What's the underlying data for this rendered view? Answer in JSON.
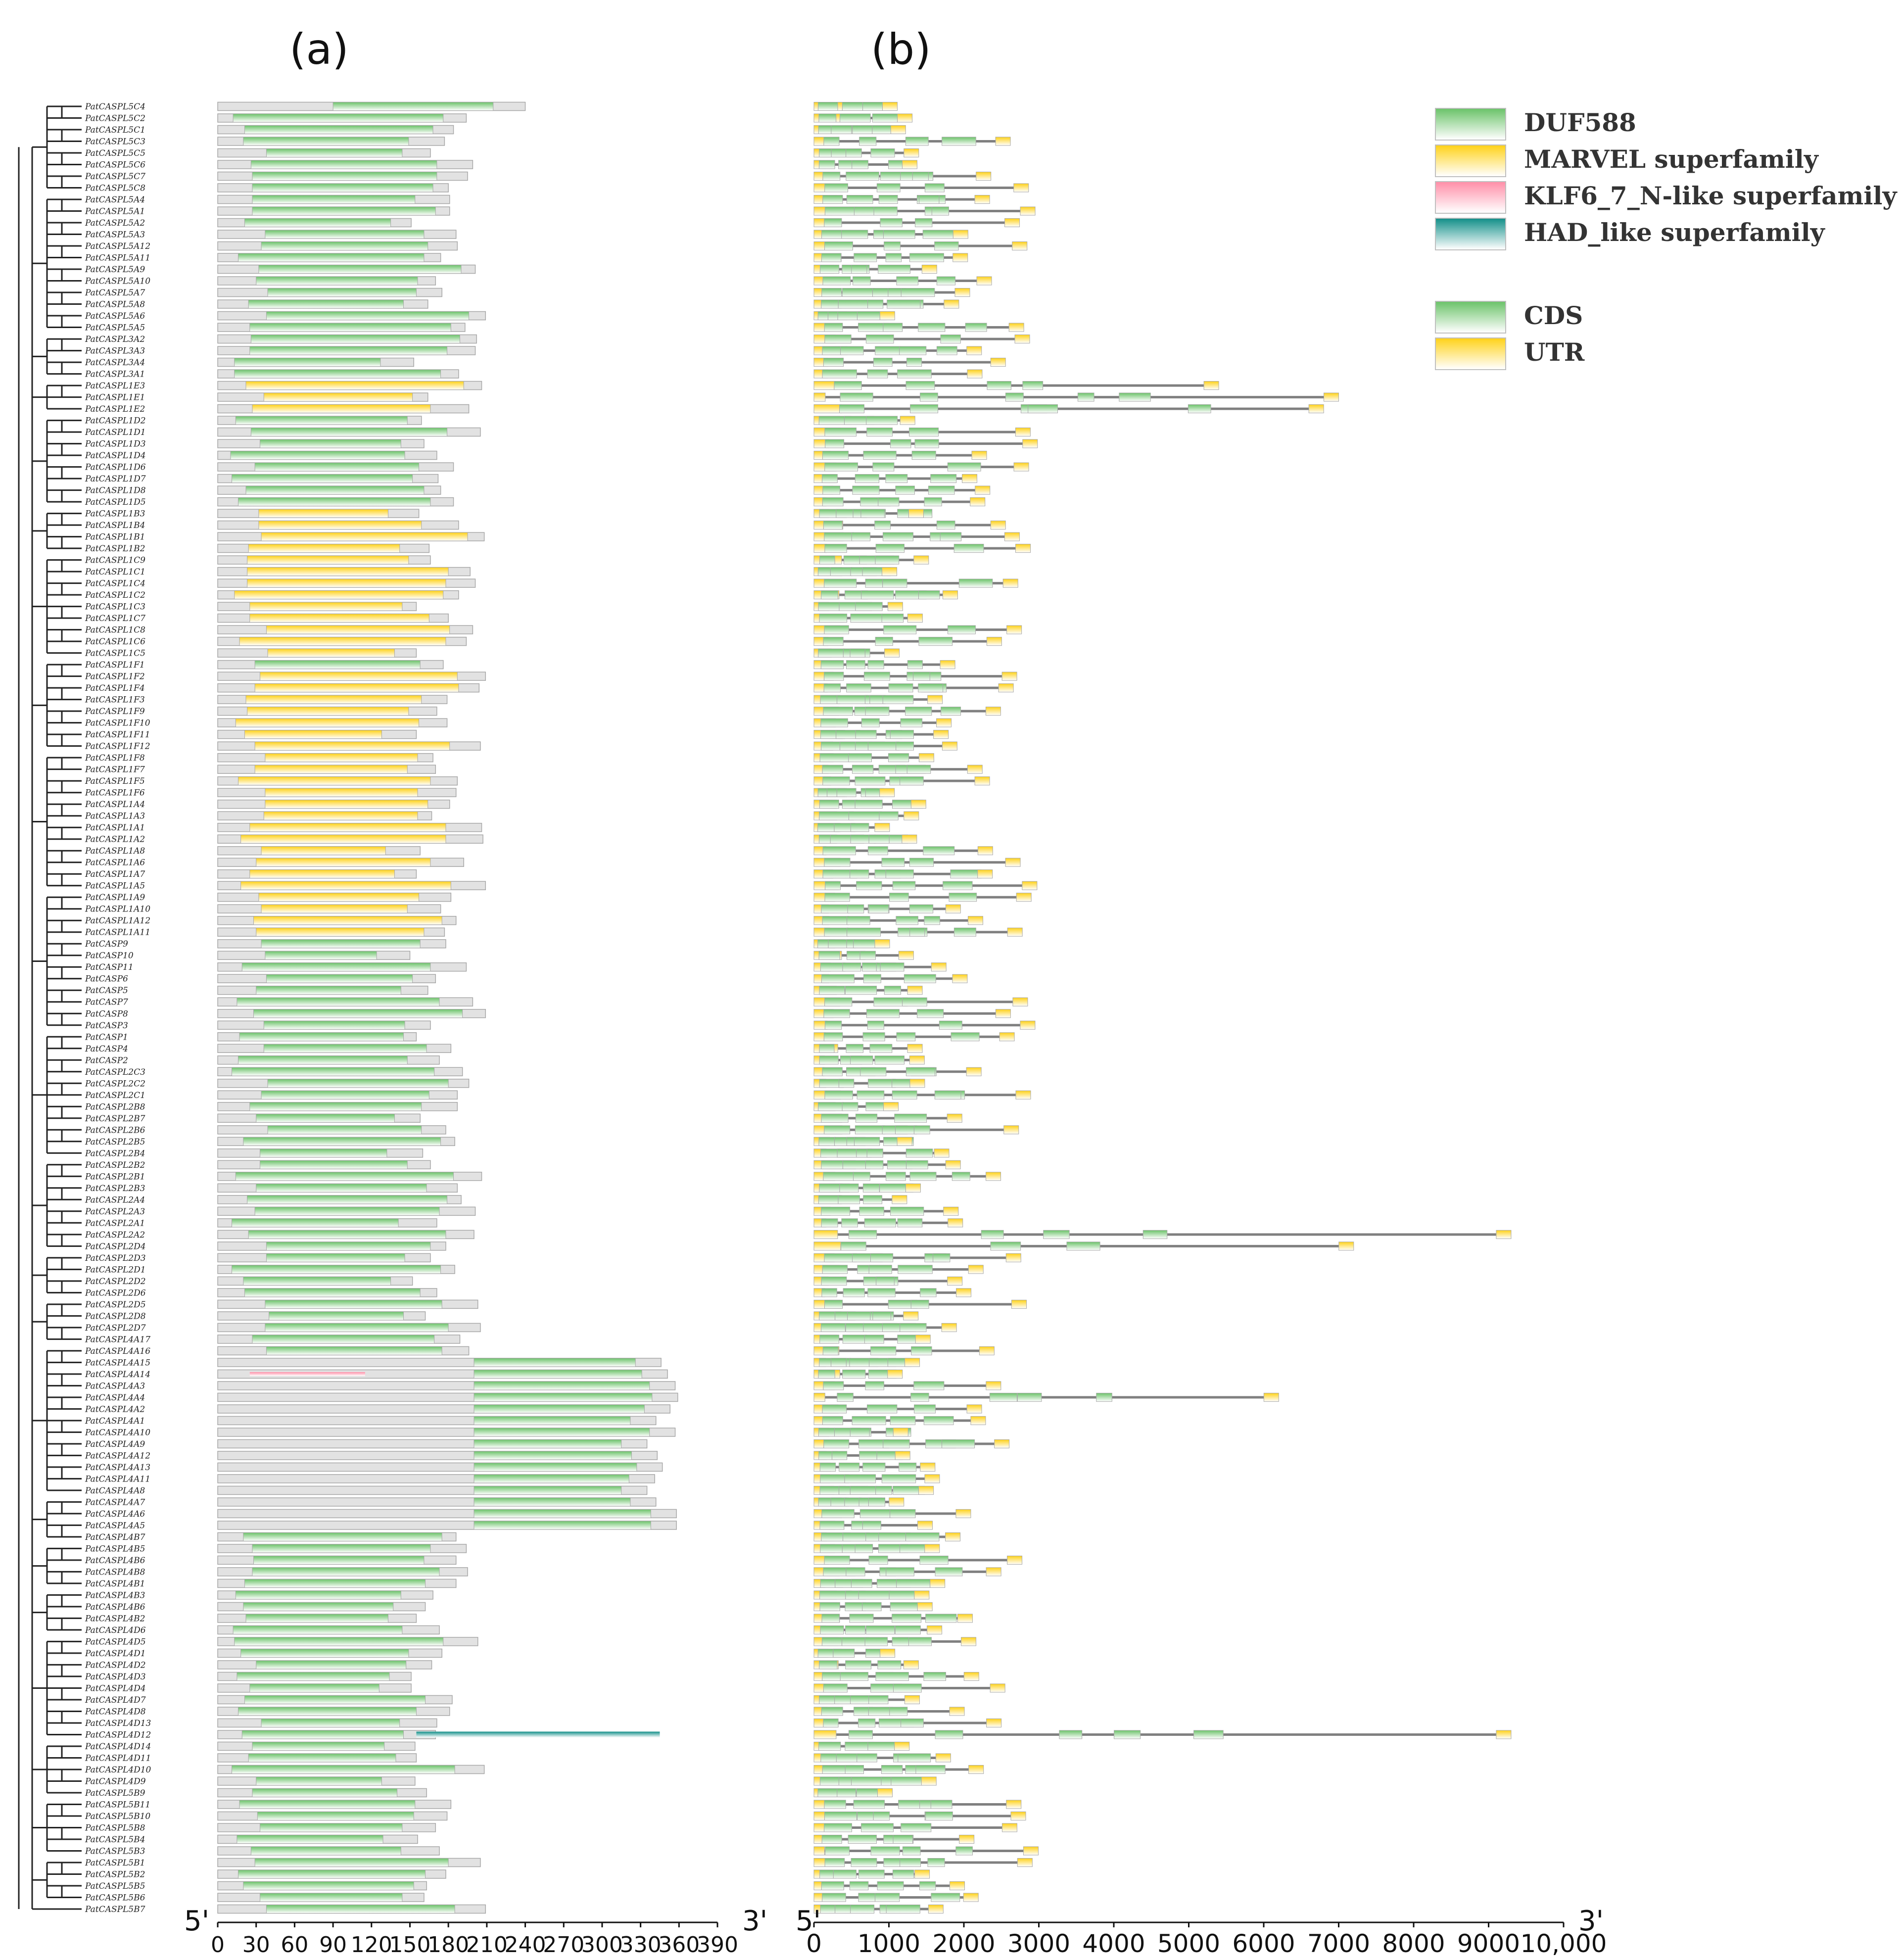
{
  "panels": {
    "a": "(a)",
    "b": "(b)"
  },
  "axis_a": {
    "start_label": "5'",
    "end_label": "3'",
    "ticks": [
      0,
      30,
      60,
      90,
      120,
      150,
      180,
      210,
      240,
      270,
      300,
      330,
      360,
      390
    ]
  },
  "axis_b": {
    "start_label": "5'",
    "end_label": "3'",
    "ticks": [
      "0",
      "1000",
      "2000",
      "3000",
      "4000",
      "5000",
      "6000",
      "7000",
      "8000",
      "9000",
      "10,000"
    ]
  },
  "legend_domains": [
    {
      "label": "DUF588",
      "color": "#6cc36a"
    },
    {
      "label": "MARVEL superfamily",
      "color": "#ffd21a"
    },
    {
      "label": "KLF6_7_N-like superfamily",
      "color": "#ff8fa8"
    },
    {
      "label": "HAD_like superfamily",
      "color": "#14908a"
    }
  ],
  "legend_structure": [
    {
      "label": "CDS",
      "color": "#6cc36a"
    },
    {
      "label": "UTR",
      "color": "#ffd21a"
    }
  ],
  "colors": {
    "protein": "#dcdcdc",
    "intron": "#808080",
    "tree": "#222222"
  },
  "genes": [
    "PatCASPL5C4",
    "PatCASPL5C2",
    "PatCASPL5C1",
    "PatCASPL5C3",
    "PatCASPL5C5",
    "PatCASPL5C6",
    "PatCASPL5C7",
    "PatCASPL5C8",
    "PatCASPL5A4",
    "PatCASPL5A1",
    "PatCASPL5A2",
    "PatCASPL5A3",
    "PatCASPL5A12",
    "PatCASPL5A11",
    "PatCASPL5A9",
    "PatCASPL5A10",
    "PatCASPL5A7",
    "PatCASPL5A8",
    "PatCASPL5A6",
    "PatCASPL5A5",
    "PatCASPL3A2",
    "PatCASPL3A3",
    "PatCASPL3A4",
    "PatCASPL3A1",
    "PatCASPL1E3",
    "PatCASPL1E1",
    "PatCASPL1E2",
    "PatCASPL1D2",
    "PatCASPL1D1",
    "PatCASPL1D3",
    "PatCASPL1D4",
    "PatCASPL1D6",
    "PatCASPL1D7",
    "PatCASPL1D8",
    "PatCASPL1D5",
    "PatCASPL1B3",
    "PatCASPL1B4",
    "PatCASPL1B1",
    "PatCASPL1B2",
    "PatCASPL1C9",
    "PatCASPL1C1",
    "PatCASPL1C4",
    "PatCASPL1C2",
    "PatCASPL1C3",
    "PatCASPL1C7",
    "PatCASPL1C8",
    "PatCASPL1C6",
    "PatCASPL1C5",
    "PatCASPL1F1",
    "PatCASPL1F2",
    "PatCASPL1F4",
    "PatCASPL1F3",
    "PatCASPL1F9",
    "PatCASPL1F10",
    "PatCASPL1F11",
    "PatCASPL1F12",
    "PatCASPL1F8",
    "PatCASPL1F7",
    "PatCASPL1F5",
    "PatCASPL1F6",
    "PatCASPL1A4",
    "PatCASPL1A3",
    "PatCASPL1A1",
    "PatCASPL1A2",
    "PatCASPL1A8",
    "PatCASPL1A6",
    "PatCASPL1A7",
    "PatCASPL1A5",
    "PatCASPL1A9",
    "PatCASPL1A10",
    "PatCASPL1A12",
    "PatCASPL1A11",
    "PatCASP9",
    "PatCASP10",
    "PatCASP11",
    "PatCASP6",
    "PatCASP5",
    "PatCASP7",
    "PatCASP8",
    "PatCASP3",
    "PatCASP1",
    "PatCASP4",
    "PatCASP2",
    "PatCASPL2C3",
    "PatCASPL2C2",
    "PatCASPL2C1",
    "PatCASPL2B8",
    "PatCASPL2B7",
    "PatCASPL2B6",
    "PatCASPL2B5",
    "PatCASPL2B4",
    "PatCASPL2B2",
    "PatCASPL2B1",
    "PatCASPL2B3",
    "PatCASPL2A4",
    "PatCASPL2A3",
    "PatCASPL2A1",
    "PatCASPL2A2",
    "PatCASPL2D4",
    "PatCASPL2D3",
    "PatCASPL2D1",
    "PatCASPL2D2",
    "PatCASPL2D6",
    "PatCASPL2D5",
    "PatCASPL2D8",
    "PatCASPL2D7",
    "PatCASPL4A17",
    "PatCASPL4A16",
    "PatCASPL4A15",
    "PatCASPL4A14",
    "PatCASPL4A3",
    "PatCASPL4A4",
    "PatCASPL4A2",
    "PatCASPL4A1",
    "PatCASPL4A10",
    "PatCASPL4A9",
    "PatCASPL4A12",
    "PatCASPL4A13",
    "PatCASPL4A11",
    "PatCASPL4A8",
    "PatCASPL4A7",
    "PatCASPL4A6",
    "PatCASPL4A5",
    "PatCASPL4B7",
    "PatCASPL4B5",
    "PatCASPL4B6",
    "PatCASPL4B8",
    "PatCASPL4B1",
    "PatCASPL4B3",
    "PatCASPL4B6",
    "PatCASPL4B2",
    "PatCASPL4D6",
    "PatCASPL4D5",
    "PatCASPL4D1",
    "PatCASPL4D2",
    "PatCASPL4D3",
    "PatCASPL4D4",
    "PatCASPL4D7",
    "PatCASPL4D8",
    "PatCASPL4D13",
    "PatCASPL4D12",
    "PatCASPL4D14",
    "PatCASPL4D11",
    "PatCASPL4D10",
    "PatCASPL4D9",
    "PatCASPL5B9",
    "PatCASPL5B11",
    "PatCASPL5B10",
    "PatCASPL5B8",
    "PatCASPL5B4",
    "PatCASPL5B3",
    "PatCASPL5B1",
    "PatCASPL5B2",
    "PatCASPL5B5",
    "PatCASPL5B6",
    "PatCASPL5B7"
  ]
}
